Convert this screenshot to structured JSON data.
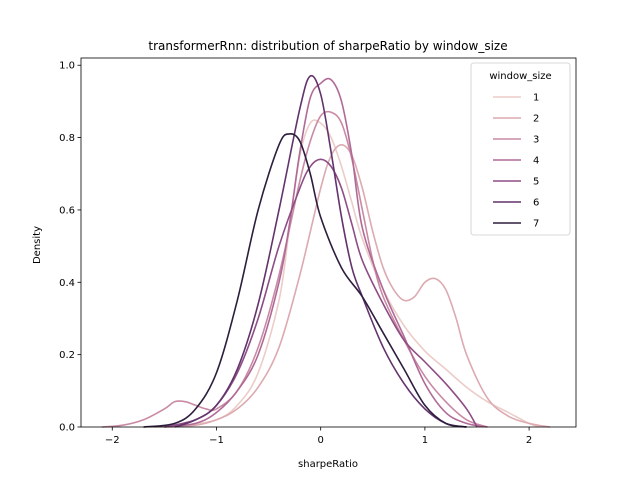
{
  "chart_data": {
    "type": "line",
    "title": "transformerRnn: distribution of sharpeRatio by window_size",
    "xlabel": "sharpeRatio",
    "ylabel": "Density",
    "xlim": [
      -2.3,
      2.45
    ],
    "ylim": [
      0,
      1.02
    ],
    "xticks": [
      -2,
      -1,
      0,
      1,
      2
    ],
    "yticks": [
      0.0,
      0.2,
      0.4,
      0.6,
      0.8,
      1.0
    ],
    "xtick_labels": [
      "−2",
      "−1",
      "0",
      "1",
      "2"
    ],
    "ytick_labels": [
      "0.0",
      "0.2",
      "0.4",
      "0.6",
      "0.8",
      "1.0"
    ],
    "legend": {
      "title": "window_size",
      "placement": "top-right"
    },
    "series": [
      {
        "name": "1",
        "color": "#ebccc8",
        "x": [
          -1.6,
          -1.3,
          -1.0,
          -0.8,
          -0.6,
          -0.4,
          -0.3,
          -0.2,
          -0.1,
          0.0,
          0.1,
          0.2,
          0.3,
          0.4,
          0.6,
          0.8,
          1.0,
          1.2,
          1.4,
          1.6,
          1.8,
          2.0,
          2.1
        ],
        "y": [
          0.0,
          0.005,
          0.02,
          0.06,
          0.15,
          0.35,
          0.55,
          0.75,
          0.84,
          0.84,
          0.8,
          0.72,
          0.62,
          0.52,
          0.38,
          0.28,
          0.21,
          0.16,
          0.11,
          0.07,
          0.04,
          0.01,
          0.0
        ]
      },
      {
        "name": "2",
        "color": "#dcaab0",
        "x": [
          -1.5,
          -1.2,
          -1.0,
          -0.8,
          -0.6,
          -0.4,
          -0.2,
          0.0,
          0.1,
          0.2,
          0.3,
          0.4,
          0.5,
          0.6,
          0.7,
          0.8,
          0.9,
          1.0,
          1.1,
          1.2,
          1.3,
          1.4,
          1.6,
          1.8,
          2.0,
          2.2
        ],
        "y": [
          0.0,
          0.005,
          0.02,
          0.05,
          0.11,
          0.22,
          0.42,
          0.66,
          0.75,
          0.78,
          0.75,
          0.66,
          0.54,
          0.44,
          0.38,
          0.35,
          0.36,
          0.4,
          0.41,
          0.38,
          0.3,
          0.2,
          0.08,
          0.03,
          0.01,
          0.0
        ]
      },
      {
        "name": "3",
        "color": "#c98aa4",
        "x": [
          -2.1,
          -1.9,
          -1.7,
          -1.5,
          -1.4,
          -1.3,
          -1.2,
          -1.1,
          -1.0,
          -0.8,
          -0.6,
          -0.4,
          -0.2,
          -0.1,
          0.0,
          0.1,
          0.2,
          0.3,
          0.4,
          0.5,
          0.6,
          0.8,
          1.0,
          1.2,
          1.4,
          1.6
        ],
        "y": [
          0.0,
          0.005,
          0.02,
          0.05,
          0.07,
          0.07,
          0.06,
          0.05,
          0.05,
          0.1,
          0.22,
          0.42,
          0.68,
          0.79,
          0.86,
          0.87,
          0.84,
          0.74,
          0.6,
          0.46,
          0.36,
          0.24,
          0.14,
          0.07,
          0.02,
          0.0
        ]
      },
      {
        "name": "4",
        "color": "#b06a96",
        "x": [
          -1.5,
          -1.2,
          -1.0,
          -0.8,
          -0.6,
          -0.4,
          -0.3,
          -0.2,
          -0.1,
          0.0,
          0.1,
          0.2,
          0.3,
          0.4,
          0.6,
          0.8,
          1.0,
          1.2,
          1.4,
          1.6
        ],
        "y": [
          0.0,
          0.01,
          0.04,
          0.1,
          0.2,
          0.4,
          0.56,
          0.76,
          0.91,
          0.95,
          0.96,
          0.9,
          0.75,
          0.55,
          0.38,
          0.25,
          0.12,
          0.04,
          0.01,
          0.0
        ]
      },
      {
        "name": "5",
        "color": "#8d4d85",
        "x": [
          -1.5,
          -1.2,
          -1.0,
          -0.8,
          -0.6,
          -0.4,
          -0.2,
          -0.1,
          0.0,
          0.1,
          0.2,
          0.3,
          0.4,
          0.6,
          0.8,
          1.0,
          1.2,
          1.4,
          1.5
        ],
        "y": [
          0.0,
          0.02,
          0.06,
          0.15,
          0.3,
          0.5,
          0.66,
          0.72,
          0.74,
          0.72,
          0.66,
          0.56,
          0.46,
          0.34,
          0.24,
          0.18,
          0.12,
          0.05,
          0.0
        ]
      },
      {
        "name": "6",
        "color": "#62336c",
        "x": [
          -1.4,
          -1.2,
          -1.0,
          -0.8,
          -0.6,
          -0.4,
          -0.2,
          -0.1,
          0.0,
          0.1,
          0.2,
          0.3,
          0.4,
          0.6,
          0.8,
          1.0,
          1.2,
          1.4
        ],
        "y": [
          0.0,
          0.02,
          0.06,
          0.16,
          0.34,
          0.6,
          0.88,
          0.97,
          0.92,
          0.76,
          0.58,
          0.44,
          0.36,
          0.22,
          0.12,
          0.05,
          0.01,
          0.0
        ]
      },
      {
        "name": "7",
        "color": "#2d1e3e",
        "x": [
          -1.7,
          -1.4,
          -1.2,
          -1.0,
          -0.8,
          -0.6,
          -0.4,
          -0.3,
          -0.2,
          -0.1,
          0.0,
          0.2,
          0.4,
          0.6,
          0.8,
          1.0,
          1.2,
          1.4
        ],
        "y": [
          0.0,
          0.01,
          0.05,
          0.15,
          0.35,
          0.6,
          0.78,
          0.81,
          0.79,
          0.7,
          0.58,
          0.44,
          0.36,
          0.26,
          0.16,
          0.06,
          0.01,
          0.0
        ]
      }
    ]
  }
}
